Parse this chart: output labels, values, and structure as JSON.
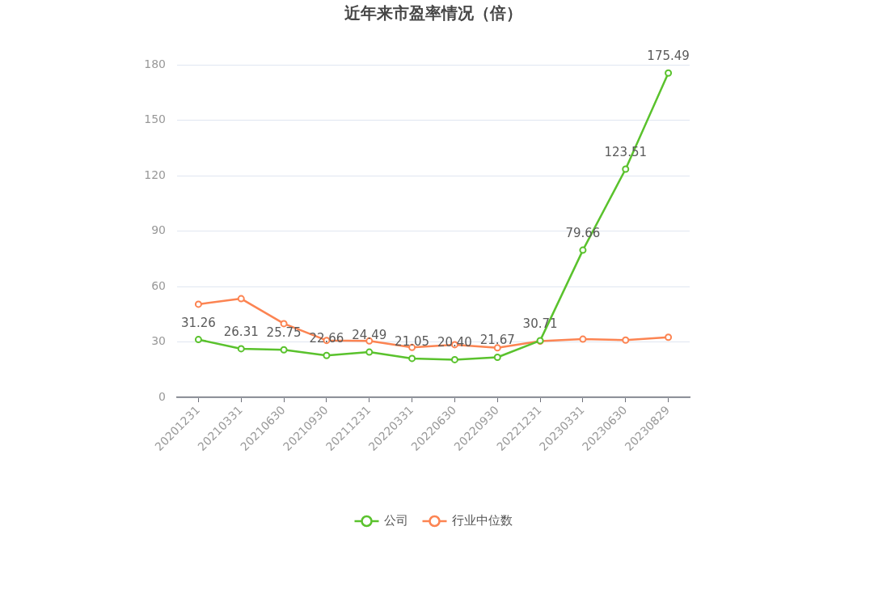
{
  "chart_data": {
    "type": "line",
    "title": "近年来市盈率情况（倍）",
    "categories": [
      "20201231",
      "20210331",
      "20210630",
      "20210930",
      "20211231",
      "20220331",
      "20220630",
      "20220930",
      "20221231",
      "20230331",
      "20230630",
      "20230829"
    ],
    "series": [
      {
        "name": "公司",
        "color": "#5ac22d",
        "values": [
          31.26,
          26.31,
          25.75,
          22.66,
          24.49,
          21.05,
          20.4,
          21.67,
          30.71,
          79.66,
          123.51,
          175.49
        ],
        "value_labels": [
          "31.26",
          "26.31",
          "25.75",
          "22.66",
          "24.49",
          "21.05",
          "20.40",
          "21.67",
          "30.71",
          "79.66",
          "123.51",
          "175.49"
        ]
      },
      {
        "name": "行业中位数",
        "color": "#fc8452",
        "values": [
          50.4,
          53.4,
          39.9,
          30.8,
          30.5,
          27.0,
          28.5,
          26.8,
          30.4,
          31.5,
          31.0,
          32.5
        ]
      }
    ],
    "ylim": [
      0,
      180
    ],
    "yticks": [
      0,
      30,
      60,
      90,
      120,
      150,
      180
    ],
    "grid": "y",
    "legend": "bottom",
    "marker": "circle",
    "line_style": "solid"
  }
}
